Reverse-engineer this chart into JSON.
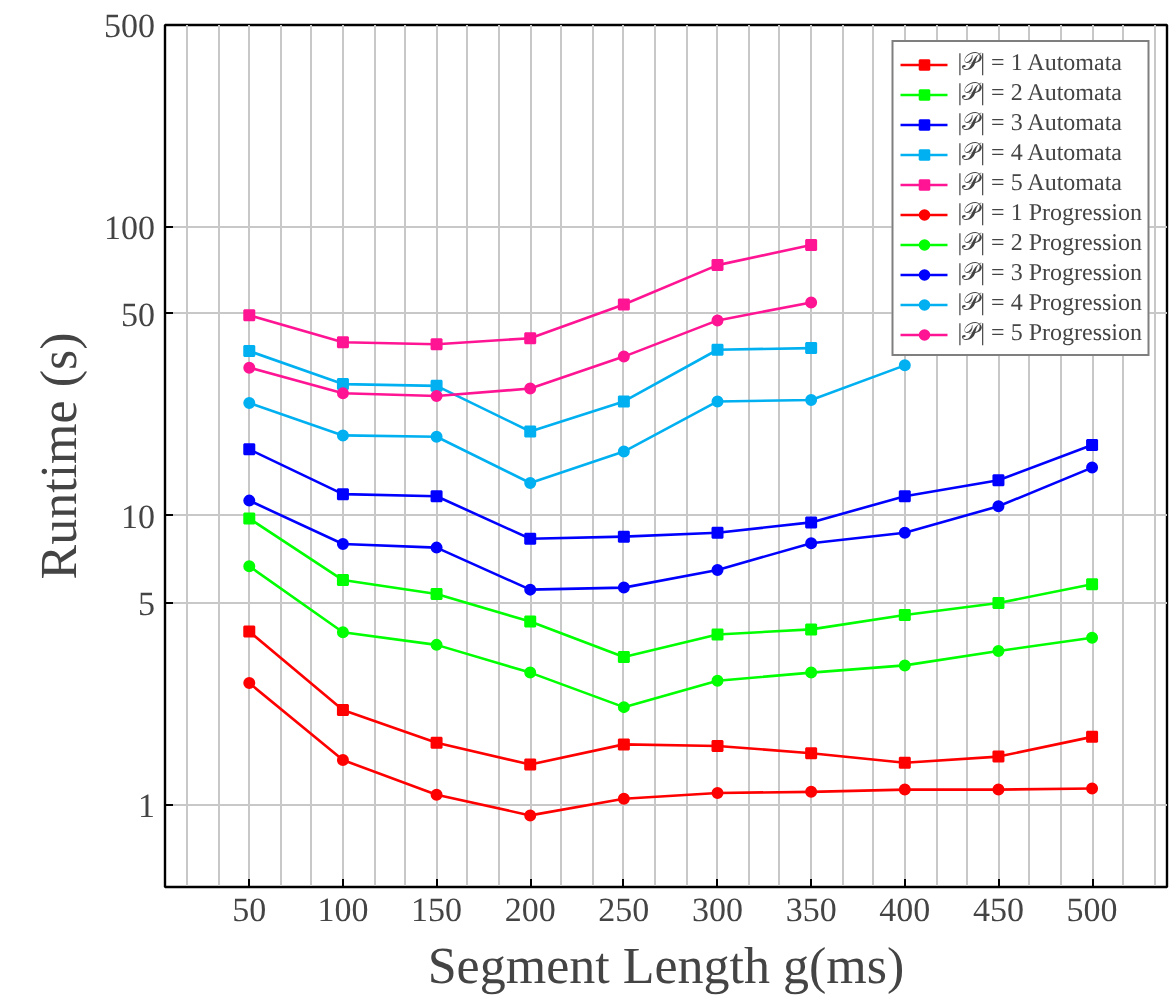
{
  "chart_data": {
    "type": "line",
    "xlabel": "Segment Length g(ms)",
    "ylabel": "Runtime (s)",
    "x": [
      50,
      100,
      150,
      200,
      250,
      300,
      350,
      400,
      450,
      500
    ],
    "xlim": [
      5,
      540
    ],
    "xticks": [
      50,
      100,
      150,
      200,
      250,
      300,
      350,
      400,
      450,
      500
    ],
    "ylim": [
      0.52,
      500
    ],
    "yticks": [
      1,
      5,
      10,
      50,
      100,
      500
    ],
    "log": "y",
    "grid": true,
    "legend": "top right",
    "series": [
      {
        "name": "|𝒫| = 1 Automata",
        "color": "#ff0000",
        "marker": "square",
        "values": [
          3.98,
          2.13,
          1.64,
          1.38,
          1.62,
          1.6,
          1.51,
          1.4,
          1.47,
          1.72
        ]
      },
      {
        "name": "|𝒫| = 2 Automata",
        "color": "#00ff00",
        "marker": "square",
        "values": [
          9.8,
          6.0,
          5.37,
          4.31,
          3.25,
          3.89,
          4.05,
          4.54,
          5.0,
          5.8
        ]
      },
      {
        "name": "|𝒫| = 3 Automata",
        "color": "#0000ff",
        "marker": "square",
        "values": [
          17.0,
          11.9,
          11.7,
          8.34,
          8.48,
          8.75,
          9.5,
          11.7,
          13.3,
          17.6
        ]
      },
      {
        "name": "|𝒫| = 4 Automata",
        "color": "#00b0f0",
        "marker": "square",
        "values": [
          37.2,
          28.6,
          28.2,
          19.6,
          24.9,
          37.6,
          38.1,
          null,
          null,
          null
        ]
      },
      {
        "name": "|𝒫| = 5 Automata",
        "color": "#ff1493",
        "marker": "square",
        "values": [
          49.5,
          39.9,
          39.3,
          41.2,
          53.9,
          73.8,
          86.6,
          null,
          null,
          null
        ]
      },
      {
        "name": "|𝒫| = 1 Progression",
        "color": "#ff0000",
        "marker": "circle",
        "values": [
          2.64,
          1.43,
          1.085,
          0.92,
          1.05,
          1.1,
          1.11,
          1.13,
          1.13,
          1.14
        ]
      },
      {
        "name": "|𝒫| = 2 Progression",
        "color": "#00ff00",
        "marker": "circle",
        "values": [
          6.7,
          3.96,
          3.58,
          2.87,
          2.18,
          2.69,
          2.87,
          3.04,
          3.41,
          3.79
        ]
      },
      {
        "name": "|𝒫| = 3 Progression",
        "color": "#0000ff",
        "marker": "circle",
        "values": [
          11.3,
          8.0,
          7.77,
          5.56,
          5.65,
          6.5,
          8.05,
          8.75,
          10.8,
          14.7
        ]
      },
      {
        "name": "|𝒫| = 4 Progression",
        "color": "#00b0f0",
        "marker": "circle",
        "values": [
          24.6,
          19.0,
          18.8,
          13.0,
          16.7,
          24.9,
          25.2,
          33.2,
          null,
          null
        ]
      },
      {
        "name": "|𝒫| = 5 Progression",
        "color": "#ff1493",
        "marker": "circle",
        "values": [
          32.6,
          26.6,
          26.0,
          27.6,
          35.6,
          47.5,
          54.8,
          null,
          null,
          null
        ]
      }
    ]
  }
}
